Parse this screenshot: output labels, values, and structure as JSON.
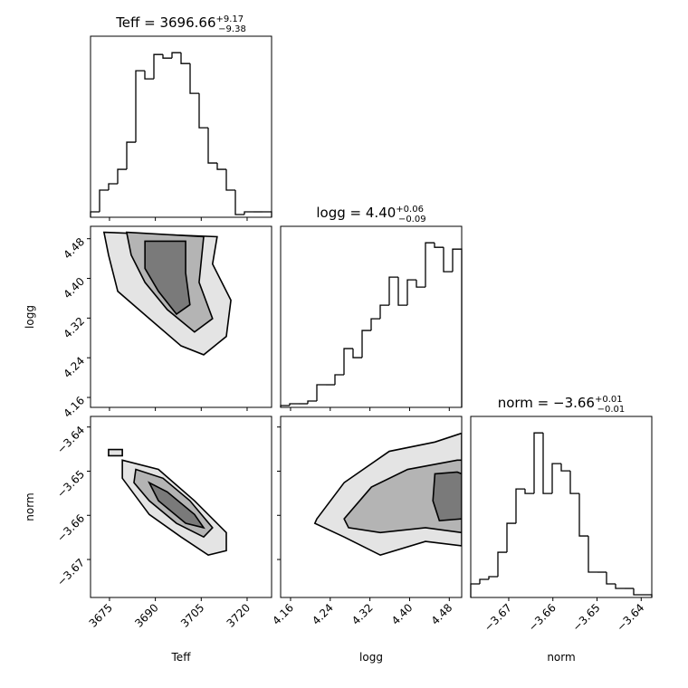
{
  "chart_data": {
    "type": "corner",
    "line_color": "#000000",
    "parameters": [
      {
        "label": "Teff",
        "title": "Teff = 3696.66",
        "title_plus": "+9.17",
        "title_minus": "−9.38",
        "lim": [
          3668.8,
          3728
        ],
        "ticks": [
          3675,
          3690,
          3705,
          3720
        ],
        "bins": [
          3668.8,
          3671.76,
          3674.72,
          3677.68,
          3680.64,
          3683.6,
          3686.56,
          3689.52,
          3692.48,
          3695.44,
          3698.4,
          3701.36,
          3704.32,
          3707.28,
          3710.24,
          3713.2,
          3716.16,
          3719.12,
          3722.08,
          3725.04,
          3728
        ],
        "counts": [
          6,
          30,
          37,
          53,
          83,
          162,
          153,
          180,
          176,
          182,
          170,
          137,
          99,
          60,
          53,
          30,
          3,
          6,
          6,
          6
        ]
      },
      {
        "label": "logg",
        "title": "logg = 4.40",
        "title_plus": "+0.06",
        "title_minus": "−0.09",
        "lim": [
          4.14,
          4.505
        ],
        "ticks": [
          4.16,
          4.24,
          4.32,
          {
            "value": 4.4,
            "label": "4.40"
          },
          4.48
        ],
        "bins": [
          4.14,
          4.15825,
          4.1765,
          4.19475,
          4.213,
          4.23125,
          4.2495,
          4.26775,
          4.286,
          4.30425,
          4.3225,
          4.34075,
          4.359,
          4.37725,
          4.3955,
          4.41375,
          4.432,
          4.45025,
          4.4685,
          4.48675,
          4.505
        ],
        "counts": [
          2,
          4,
          4,
          7,
          25,
          25,
          36,
          65,
          55,
          85,
          98,
          113,
          144,
          113,
          141,
          133,
          182,
          177,
          150,
          175
        ]
      },
      {
        "label": "norm",
        "title": "norm = −3.66",
        "title_plus": "+0.01",
        "title_minus": "−0.01",
        "lim": [
          -3.6786,
          -3.6376
        ],
        "ticks": [
          {
            "value": -3.67,
            "label": "−3.67"
          },
          {
            "value": -3.66,
            "label": "−3.66"
          },
          {
            "value": -3.65,
            "label": "−3.65"
          },
          {
            "value": -3.64,
            "label": "−3.64"
          }
        ],
        "bins": [
          -3.6786,
          -3.67655,
          -3.6745,
          -3.67245,
          -3.6704,
          -3.66835,
          -3.6663,
          -3.66425,
          -3.6622,
          -3.66015,
          -3.6581,
          -3.65605,
          -3.654,
          -3.65195,
          -3.6499,
          -3.64785,
          -3.6458,
          -3.64375,
          -3.6417,
          -3.63965,
          -3.6376
        ],
        "counts": [
          15,
          20,
          23,
          50,
          82,
          120,
          115,
          182,
          115,
          148,
          140,
          115,
          68,
          28,
          28,
          15,
          10,
          10,
          3,
          3
        ]
      }
    ],
    "pairs": [
      {
        "contours": [
          {
            "fill": "#e4e4e4",
            "x": [
              3673.2,
              3710.2,
              3708.7,
              3714.7,
              3713.2,
              3705.8,
              3698.4,
              3688.0,
              3677.7,
              3674.7
            ],
            "y": [
              4.493,
              4.484,
              4.429,
              4.356,
              4.283,
              4.246,
              4.264,
              4.319,
              4.374,
              4.447
            ]
          },
          {
            "fill": "#b4b4b4",
            "x": [
              3680.6,
              3705.8,
              3704.3,
              3708.7,
              3702.8,
              3693.9,
              3686.6,
              3682.1
            ],
            "y": [
              4.493,
              4.484,
              4.392,
              4.319,
              4.292,
              4.337,
              4.392,
              4.447
            ]
          },
          {
            "fill": "#7a7a7a",
            "x": [
              3686.6,
              3699.9,
              3699.9,
              3701.3,
              3696.9,
              3691.0,
              3686.6
            ],
            "y": [
              4.475,
              4.475,
              4.411,
              4.347,
              4.328,
              4.374,
              4.42
            ]
          }
        ]
      },
      {
        "contours": [
          {
            "fill": "#e4e4e4",
            "x": [
              3679.2,
              3691.0,
              3702.8,
              3713.2,
              3713.2,
              3707.3,
              3698.4,
              3688.0,
              3679.2
            ],
            "y": [
              -3.6475,
              -3.6496,
              -3.6567,
              -3.6639,
              -3.668,
              -3.669,
              -3.6649,
              -3.6598,
              -3.6516
            ]
          },
          {
            "fill": "#b4b4b4",
            "x": [
              3683.6,
              3692.5,
              3701.3,
              3708.7,
              3705.8,
              3696.9,
              3688.0,
              3683.0
            ],
            "y": [
              -3.6496,
              -3.6516,
              -3.6567,
              -3.6628,
              -3.6649,
              -3.6618,
              -3.6567,
              -3.6526
            ]
          },
          {
            "fill": "#7a7a7a",
            "x": [
              3688.0,
              3693.9,
              3702.8,
              3705.8,
              3699.9,
              3691.0
            ],
            "y": [
              -3.6526,
              -3.6547,
              -3.6598,
              -3.6628,
              -3.6618,
              -3.6567
            ]
          },
          {
            "fill": "#e4e4e4",
            "x": [
              3674.7,
              3679.2,
              3679.2,
              3674.7
            ],
            "y": [
              -3.6451,
              -3.6451,
              -3.6465,
              -3.6465
            ]
          }
        ]
      },
      {
        "contours": [
          {
            "fill": "#e4e4e4",
            "x": [
              4.213,
              4.268,
              4.359,
              4.451,
              4.505,
              4.505,
              4.432,
              4.341,
              4.268,
              4.209
            ],
            "y": [
              -3.6608,
              -3.6526,
              -3.6455,
              -3.6434,
              -3.6414,
              -3.6669,
              -3.6659,
              -3.669,
              -3.6649,
              -3.6618
            ]
          },
          {
            "fill": "#b4b4b4",
            "x": [
              4.268,
              4.323,
              4.396,
              4.496,
              4.505,
              4.505,
              4.432,
              4.341,
              4.277
            ],
            "y": [
              -3.6608,
              -3.6536,
              -3.6496,
              -3.6475,
              -3.6475,
              -3.6639,
              -3.6628,
              -3.6639,
              -3.6628
            ]
          },
          {
            "fill": "#7a7a7a",
            "x": [
              4.451,
              4.496,
              4.505,
              4.505,
              4.46,
              4.447
            ],
            "y": [
              -3.6506,
              -3.6502,
              -3.6506,
              -3.6608,
              -3.6612,
              -3.6567
            ]
          }
        ]
      }
    ]
  }
}
